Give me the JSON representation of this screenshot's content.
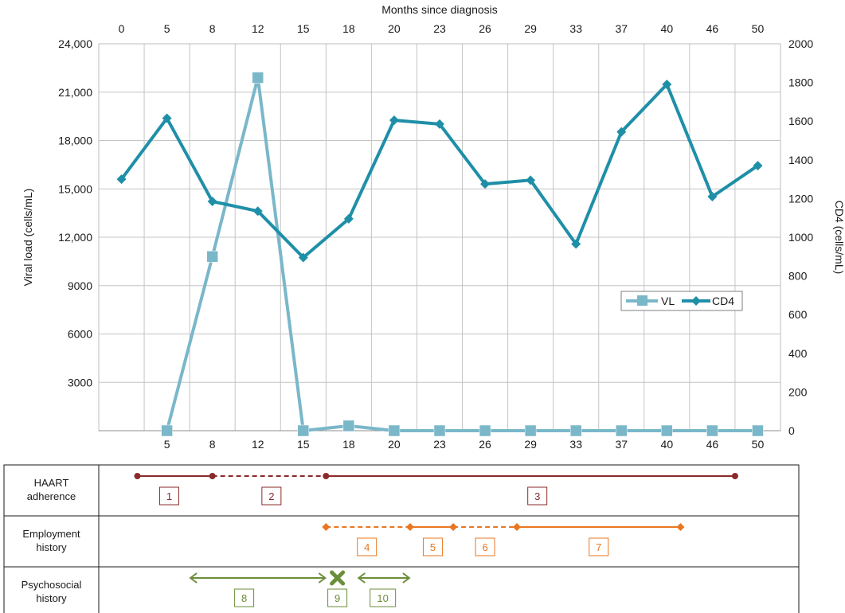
{
  "chart_data": {
    "type": "line",
    "top_axis_title": "Months since diagnosis",
    "left_axis_title": "Viral load (cells/mL)",
    "right_axis_title": "CD4 (cells/mL)",
    "categories": [
      "0",
      "5",
      "8",
      "12",
      "15",
      "18",
      "20",
      "23",
      "26",
      "29",
      "33",
      "37",
      "40",
      "46",
      "50"
    ],
    "bottom_categories": [
      "",
      "5",
      "8",
      "12",
      "15",
      "18",
      "20",
      "23",
      "26",
      "29",
      "33",
      "37",
      "40",
      "46",
      "50"
    ],
    "left_ylim": [
      0,
      24000
    ],
    "left_ticks": [
      0,
      3000,
      6000,
      9000,
      12000,
      15000,
      18000,
      21000,
      24000
    ],
    "left_tick_labels": [
      "",
      "3000",
      "6000",
      "9000",
      "12,000",
      "15,000",
      "18,000",
      "21,000",
      "24,000"
    ],
    "right_ylim": [
      0,
      2000
    ],
    "right_ticks": [
      0,
      200,
      400,
      600,
      800,
      1000,
      1200,
      1400,
      1600,
      1800,
      2000
    ],
    "right_tick_labels": [
      "0",
      "200",
      "400",
      "600",
      "800",
      "1000",
      "1200",
      "1400",
      "1600",
      "1800",
      "2000"
    ],
    "grid": true,
    "legend_position": "right-middle",
    "series": [
      {
        "name": "VL",
        "axis": "left",
        "color": "#7ab7c9",
        "marker": "square",
        "values": [
          null,
          0,
          10800,
          21900,
          0,
          300,
          0,
          0,
          0,
          0,
          0,
          0,
          0,
          0,
          0
        ]
      },
      {
        "name": "CD4",
        "axis": "right",
        "color": "#1f8fa8",
        "marker": "diamond",
        "values": [
          1300,
          1615,
          1185,
          1135,
          895,
          1095,
          1605,
          1585,
          1275,
          1295,
          965,
          1545,
          1790,
          1210,
          1370
        ]
      }
    ]
  },
  "timeline": {
    "rows": [
      {
        "label": [
          "HAART",
          "adherence"
        ],
        "color": "#8b2a2a",
        "segments": [
          {
            "from": 0.85,
            "to": 2.5,
            "style": "solid"
          },
          {
            "from": 2.5,
            "to": 5.0,
            "style": "dashed"
          },
          {
            "from": 5.0,
            "to": 14.0,
            "style": "solid"
          }
        ],
        "markers": [
          0.85,
          2.5,
          5.0,
          14.0
        ],
        "marker": "dot",
        "boxes": [
          {
            "n": "1",
            "at": 1.55
          },
          {
            "n": "2",
            "at": 3.8
          },
          {
            "n": "3",
            "at": 9.65
          }
        ]
      },
      {
        "label": [
          "Employment",
          "history"
        ],
        "color": "#e87722",
        "segments": [
          {
            "from": 5.0,
            "to": 6.85,
            "style": "dashed"
          },
          {
            "from": 6.85,
            "to": 7.8,
            "style": "solid"
          },
          {
            "from": 7.8,
            "to": 9.2,
            "style": "dashed"
          },
          {
            "from": 9.2,
            "to": 12.8,
            "style": "solid"
          }
        ],
        "markers": [
          5.0,
          6.85,
          7.8,
          9.2,
          12.8
        ],
        "marker": "diamond",
        "boxes": [
          {
            "n": "4",
            "at": 5.9
          },
          {
            "n": "5",
            "at": 7.35
          },
          {
            "n": "6",
            "at": 8.5
          },
          {
            "n": "7",
            "at": 11.0
          }
        ]
      },
      {
        "label": [
          "Psychosocial",
          "history"
        ],
        "color": "#6b8e3a",
        "arrows": [
          {
            "from": 2.0,
            "to": 5.0
          },
          {
            "from": 5.7,
            "to": 6.85
          }
        ],
        "cross_at": 5.25,
        "boxes": [
          {
            "n": "8",
            "at": 3.2
          },
          {
            "n": "9",
            "at": 5.25
          },
          {
            "n": "10",
            "at": 6.25
          }
        ]
      }
    ]
  }
}
